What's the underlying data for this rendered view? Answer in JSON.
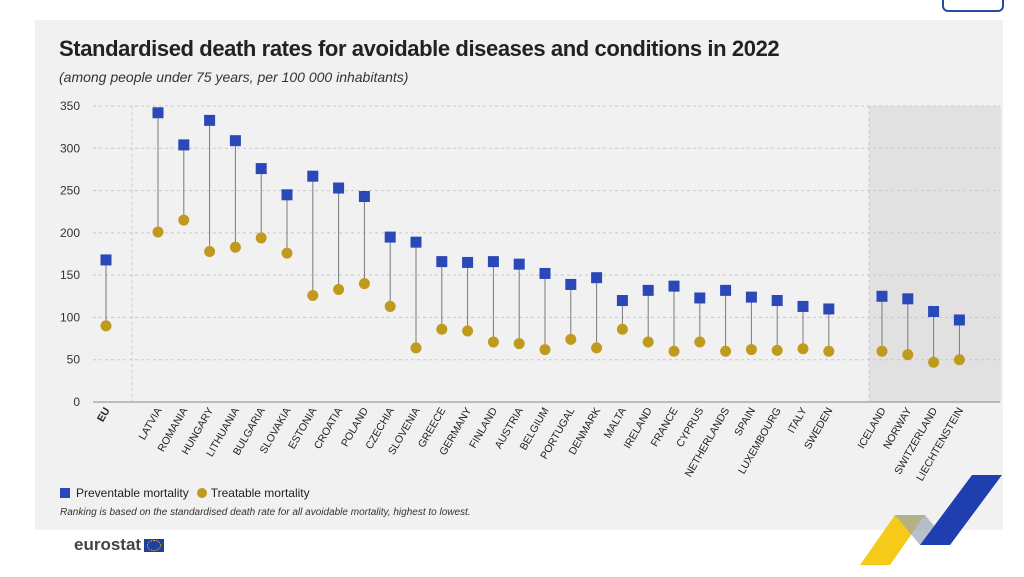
{
  "title": "Standardised death rates for avoidable diseases and conditions in 2022",
  "subtitle": "(among people under 75 years, per 100 000 inhabitants)",
  "legend": {
    "preventable": "Preventable mortality",
    "treatable": "Treatable mortality"
  },
  "note": "Ranking is based on the standardised death rate for all avoidable mortality, highest to lowest.",
  "brand": "eurostat",
  "colors": {
    "preventable": "#2b48b8",
    "treatable": "#bf9a1d",
    "panel": "#f1f1f1",
    "non_eu_band": "#e1e1e1"
  },
  "chart_data": {
    "type": "scatter",
    "title": "Standardised death rates for avoidable diseases and conditions in 2022",
    "subtitle": "(among people under 75 years, per 100 000 inhabitants)",
    "ylim": [
      0,
      350
    ],
    "yticks": [
      0,
      50,
      100,
      150,
      200,
      250,
      300,
      350
    ],
    "grid": true,
    "legend_position": "bottom-left",
    "categories": [
      "EU",
      "LATVIA",
      "ROMANIA",
      "HUNGARY",
      "LITHUANIA",
      "BULGARIA",
      "SLOVAKIA",
      "ESTONIA",
      "CROATIA",
      "POLAND",
      "CZECHIA",
      "SLOVENIA",
      "GREECE",
      "GERMANY",
      "FINLAND",
      "AUSTRIA",
      "BELGIUM",
      "PORTUGAL",
      "DENMARK",
      "MALTA",
      "IRELAND",
      "FRANCE",
      "CYPRUS",
      "NETHERLANDS",
      "SPAIN",
      "LUXEMBOURG",
      "ITALY",
      "SWEDEN",
      "ICELAND",
      "NORWAY",
      "SWITZERLAND",
      "LIECHTENSTEIN"
    ],
    "groups": {
      "eu": [
        "EU"
      ],
      "non_eu": [
        "ICELAND",
        "NORWAY",
        "SWITZERLAND",
        "LIECHTENSTEIN"
      ]
    },
    "series": [
      {
        "name": "Preventable mortality",
        "values": [
          168,
          342,
          304,
          333,
          309,
          276,
          245,
          267,
          253,
          243,
          195,
          189,
          166,
          165,
          166,
          163,
          152,
          139,
          147,
          120,
          132,
          137,
          123,
          132,
          124,
          120,
          113,
          110,
          125,
          122,
          107,
          97
        ]
      },
      {
        "name": "Treatable mortality",
        "values": [
          90,
          201,
          215,
          178,
          183,
          194,
          176,
          126,
          133,
          140,
          113,
          64,
          86,
          84,
          71,
          69,
          62,
          74,
          64,
          86,
          71,
          60,
          71,
          60,
          62,
          61,
          63,
          60,
          60,
          56,
          47,
          50
        ]
      }
    ]
  }
}
